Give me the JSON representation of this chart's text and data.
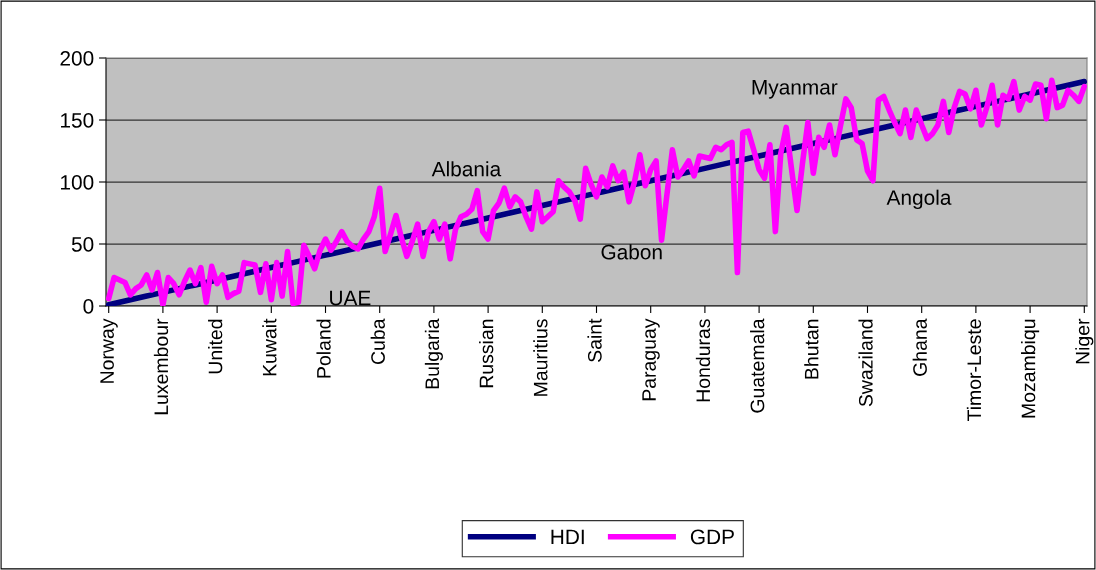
{
  "chart_data": {
    "type": "line",
    "categories": [
      "Norway",
      null,
      null,
      null,
      null,
      null,
      null,
      null,
      null,
      null,
      "Luxembour",
      null,
      null,
      null,
      null,
      null,
      null,
      null,
      null,
      null,
      "United",
      null,
      null,
      null,
      null,
      null,
      null,
      null,
      null,
      null,
      "Kuwait",
      null,
      null,
      null,
      null,
      null,
      null,
      null,
      null,
      null,
      "Poland",
      null,
      null,
      null,
      null,
      null,
      null,
      null,
      null,
      null,
      "Cuba",
      null,
      null,
      null,
      null,
      null,
      null,
      null,
      null,
      null,
      "Bulgaria",
      null,
      null,
      null,
      null,
      null,
      null,
      null,
      null,
      null,
      "Russian",
      null,
      null,
      null,
      null,
      null,
      null,
      null,
      null,
      null,
      "Mauritius",
      null,
      null,
      null,
      null,
      null,
      null,
      null,
      null,
      null,
      "Saint",
      null,
      null,
      null,
      null,
      null,
      null,
      null,
      null,
      null,
      "Paraguay",
      null,
      null,
      null,
      null,
      null,
      null,
      null,
      null,
      null,
      "Honduras",
      null,
      null,
      null,
      null,
      null,
      null,
      null,
      null,
      null,
      "Guatemala",
      null,
      null,
      null,
      null,
      null,
      null,
      null,
      null,
      null,
      "Bhutan",
      null,
      null,
      null,
      null,
      null,
      null,
      null,
      null,
      null,
      "Swaziland",
      null,
      null,
      null,
      null,
      null,
      null,
      null,
      null,
      null,
      "Ghana",
      null,
      null,
      null,
      null,
      null,
      null,
      null,
      null,
      null,
      "Timor-Leste",
      null,
      null,
      null,
      null,
      null,
      null,
      null,
      null,
      null,
      "Mozambiqu",
      null,
      null,
      null,
      null,
      null,
      null,
      null,
      null,
      null,
      "Niger"
    ],
    "series": [
      {
        "name": "HDI",
        "color": "#000080",
        "values": [
          1,
          2,
          3,
          4,
          5,
          6,
          7,
          8,
          9,
          10,
          11,
          12,
          13,
          14,
          15,
          16,
          17,
          18,
          19,
          20,
          21,
          22,
          23,
          24,
          25,
          26,
          27,
          28,
          29,
          30,
          31,
          32,
          33,
          34,
          35,
          36,
          37,
          38,
          39,
          40,
          41,
          42,
          43,
          44,
          45,
          46,
          47,
          48,
          49,
          50,
          51,
          52,
          53,
          54,
          55,
          56,
          57,
          58,
          59,
          60,
          61,
          62,
          63,
          64,
          65,
          66,
          67,
          68,
          69,
          70,
          71,
          72,
          73,
          74,
          75,
          76,
          77,
          78,
          79,
          80,
          81,
          82,
          83,
          84,
          85,
          86,
          87,
          88,
          89,
          90,
          91,
          92,
          93,
          94,
          95,
          96,
          97,
          98,
          99,
          100,
          101,
          102,
          103,
          104,
          105,
          106,
          107,
          108,
          109,
          110,
          111,
          112,
          113,
          114,
          115,
          116,
          117,
          118,
          119,
          120,
          121,
          122,
          123,
          124,
          125,
          126,
          127,
          128,
          129,
          130,
          131,
          132,
          133,
          134,
          135,
          136,
          137,
          138,
          139,
          140,
          141,
          142,
          143,
          144,
          145,
          146,
          147,
          148,
          149,
          150,
          151,
          152,
          153,
          154,
          155,
          156,
          157,
          158,
          159,
          160,
          161,
          162,
          163,
          164,
          165,
          166,
          167,
          168,
          169,
          170,
          171,
          172,
          173,
          174,
          175,
          176,
          177,
          178,
          179,
          180,
          181
        ]
      },
      {
        "name": "GDP",
        "color": "#ff00ff",
        "values": [
          6,
          23,
          21,
          19,
          9,
          14,
          17,
          25,
          13,
          27,
          1,
          23,
          18,
          9,
          20,
          29,
          18,
          31,
          3,
          32,
          18,
          25,
          7,
          10,
          12,
          35,
          34,
          33,
          11,
          34,
          5,
          35,
          8,
          44,
          2,
          3,
          49,
          40,
          30,
          45,
          54,
          45,
          52,
          60,
          52,
          48,
          46,
          54,
          60,
          72,
          95,
          44,
          58,
          73,
          55,
          40,
          52,
          66,
          40,
          60,
          68,
          54,
          66,
          38,
          62,
          72,
          74,
          78,
          93,
          60,
          54,
          77,
          83,
          95,
          80,
          88,
          84,
          72,
          62,
          92,
          68,
          72,
          76,
          101,
          96,
          92,
          85,
          70,
          111,
          98,
          88,
          104,
          96,
          113,
          101,
          108,
          84,
          100,
          122,
          97,
          110,
          117,
          53,
          90,
          126,
          104,
          110,
          117,
          105,
          121,
          120,
          119,
          128,
          126,
          130,
          132,
          27,
          140,
          141,
          126,
          110,
          103,
          130,
          60,
          123,
          144,
          110,
          77,
          115,
          148,
          107,
          136,
          128,
          146,
          122,
          145,
          167,
          160,
          134,
          131,
          109,
          101,
          166,
          169,
          158,
          148,
          139,
          158,
          136,
          158,
          146,
          135,
          139,
          146,
          165,
          140,
          160,
          173,
          171,
          159,
          174,
          146,
          160,
          178,
          146,
          170,
          167,
          181,
          158,
          169,
          166,
          179,
          178,
          151,
          182,
          160,
          162,
          174,
          170,
          165,
          177
        ]
      }
    ],
    "ylim": [
      0,
      200
    ],
    "yticks": [
      0,
      50,
      100,
      150,
      200
    ],
    "grid": "y",
    "legend": "bottom",
    "marker": "none",
    "line_style": "solid",
    "annotations": [
      "UAE",
      "Albania",
      "Gabon",
      "Myanmar",
      "Angola"
    ]
  }
}
